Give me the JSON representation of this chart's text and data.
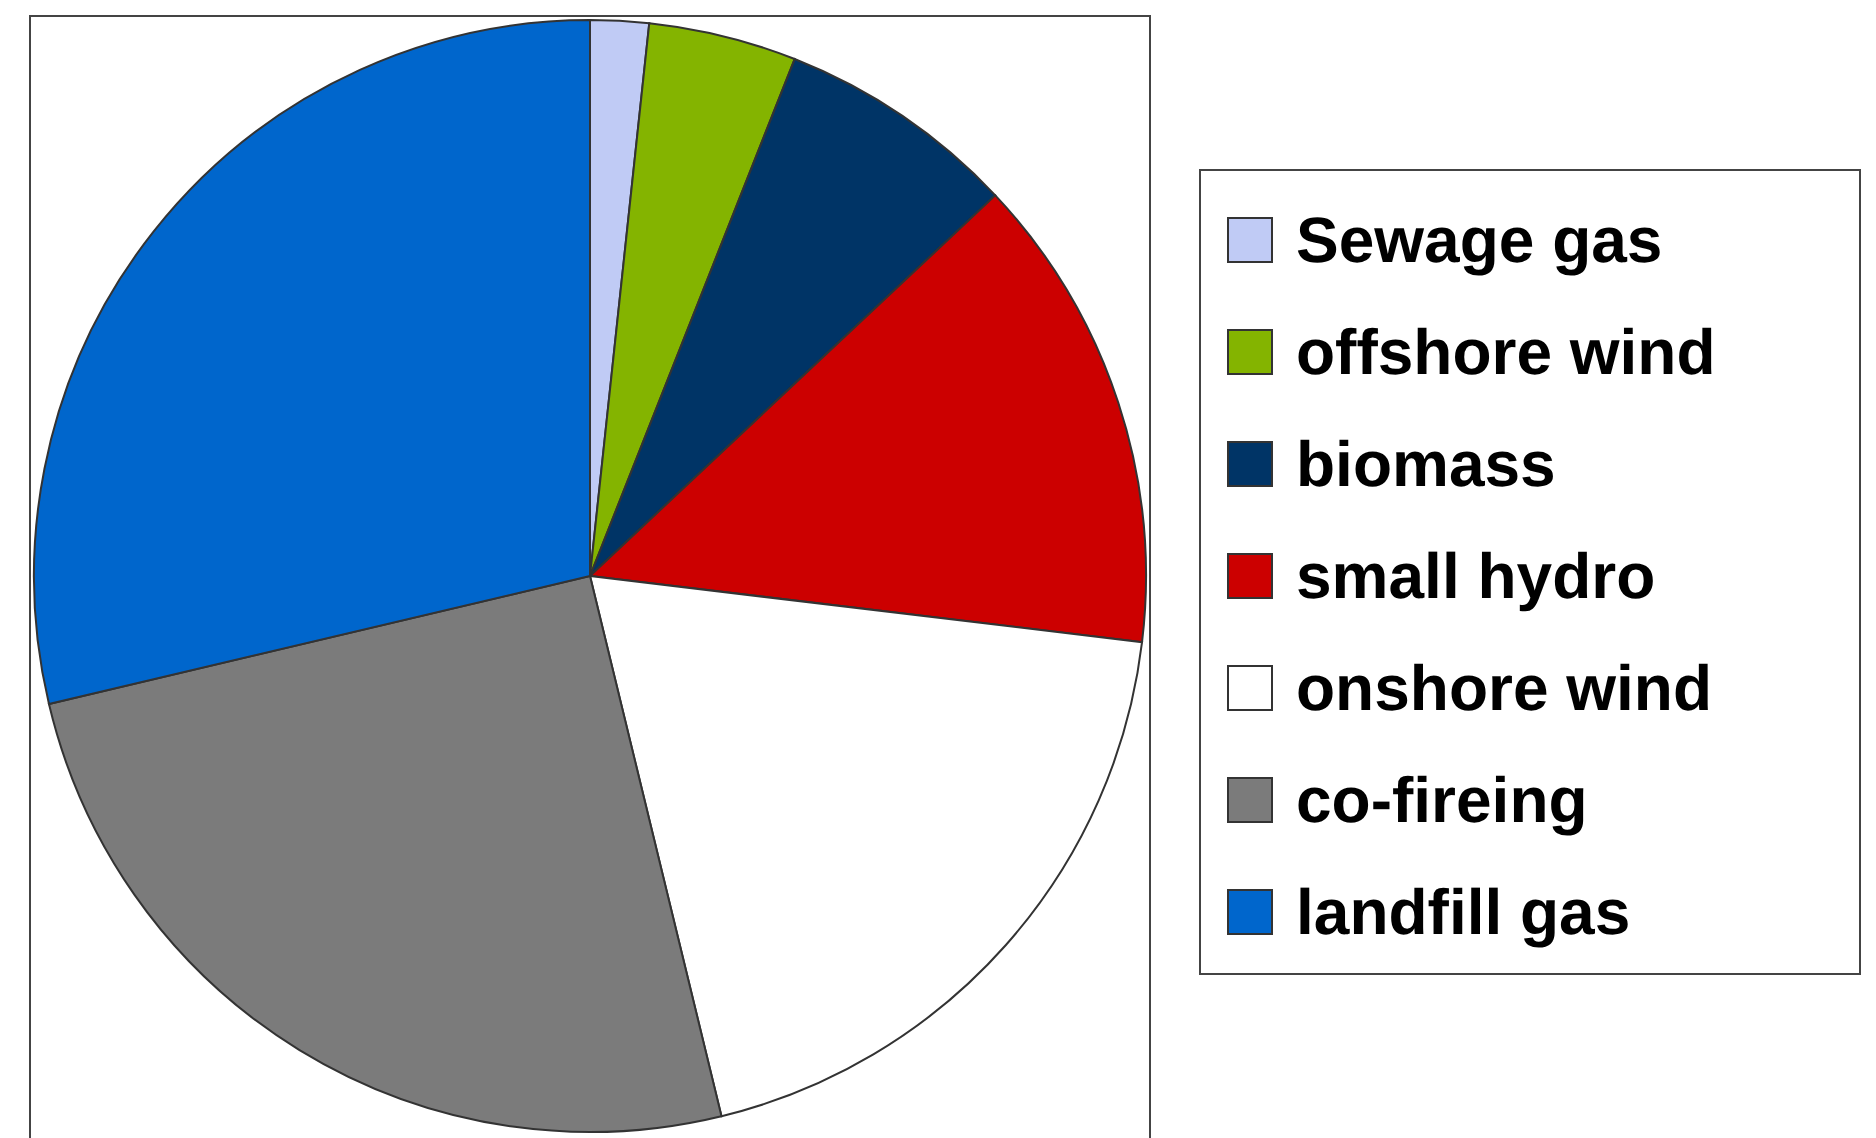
{
  "chart_data": {
    "type": "pie",
    "categories": [
      "Sewage gas",
      "offshore wind",
      "biomass",
      "small hydro",
      "onshore wind",
      "co-fireing",
      "landfill gas"
    ],
    "values": [
      1.7,
      4.3,
      7.0,
      13.9,
      19.3,
      25.1,
      28.7
    ],
    "colors": [
      "#c0cbf5",
      "#84b400",
      "#003466",
      "#cc0000",
      "#ffffff",
      "#7b7b7b",
      "#0066cc"
    ],
    "legend": "right"
  }
}
